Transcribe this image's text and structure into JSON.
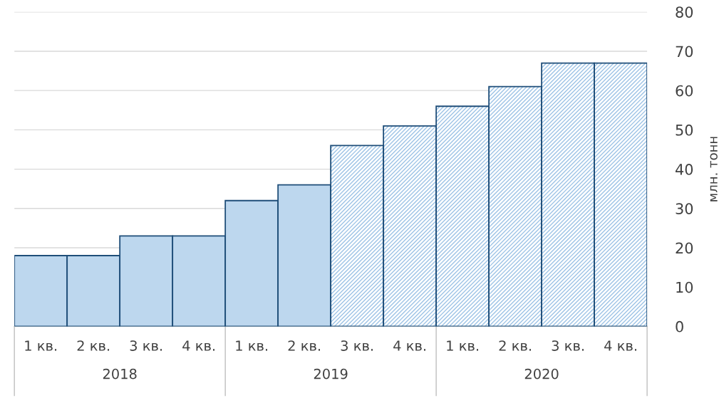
{
  "chart_data": {
    "type": "bar",
    "categories": [
      "1 кв.",
      "2 кв.",
      "3 кв.",
      "4 кв.",
      "1 кв.",
      "2 кв.",
      "3 кв.",
      "4 кв.",
      "1 кв.",
      "2 кв.",
      "3 кв.",
      "4 кв."
    ],
    "series": [
      {
        "color": "#bdd7ee",
        "values": [
          18,
          18,
          23,
          23,
          32,
          36,
          null,
          null,
          null,
          null,
          null,
          null
        ]
      },
      {
        "color": "#9dc3e6",
        "values": [
          null,
          null,
          null,
          null,
          null,
          null,
          46,
          51,
          56,
          61,
          67,
          67
        ]
      }
    ],
    "ylabel": "млн. тонн",
    "ylim": [
      0,
      80
    ],
    "yticks": [
      0,
      10,
      20,
      30,
      40,
      50,
      60,
      70,
      80
    ],
    "grid": "y",
    "legend": false,
    "annotations": [
      "2018",
      "2019",
      "2020"
    ]
  }
}
